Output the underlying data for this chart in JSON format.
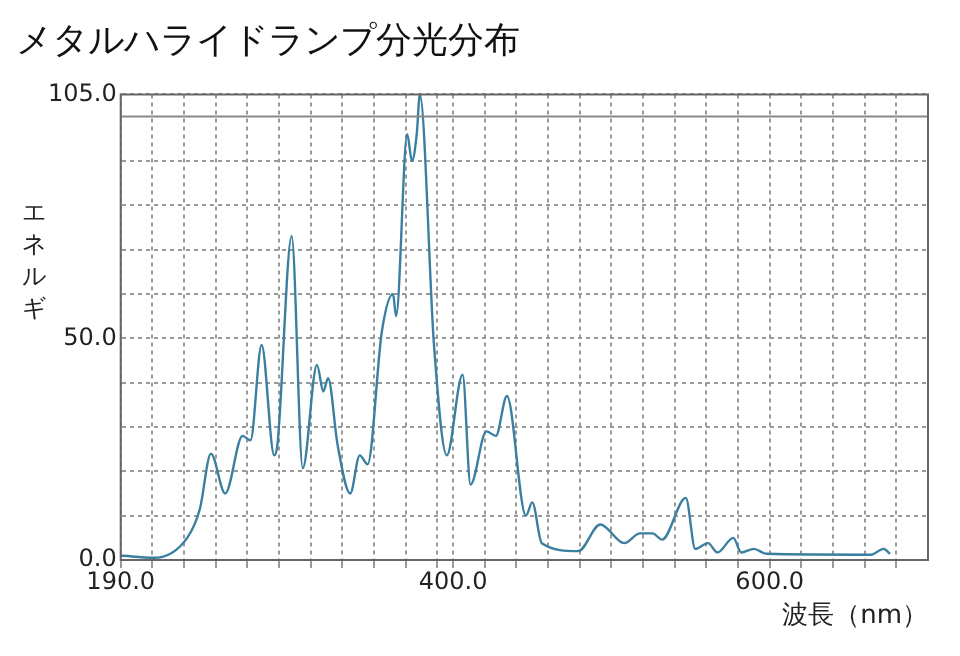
{
  "chart_data": {
    "type": "line",
    "title": "メタルハライドランプ分光分布",
    "xlabel": "波長（nm）",
    "ylabel": "エネルギ",
    "x": [
      190,
      211,
      232,
      240,
      247,
      256,
      267,
      272,
      279,
      287,
      289,
      298,
      305,
      314,
      318,
      321,
      327,
      335,
      341,
      346,
      355,
      362,
      364,
      371,
      374,
      377,
      379,
      388,
      396,
      406,
      411,
      421,
      427,
      434,
      446,
      450,
      456,
      479,
      493,
      508,
      518,
      526,
      532,
      547,
      553,
      561,
      567,
      577,
      582,
      590,
      598,
      664,
      672,
      676
    ],
    "series": [
      {
        "color": "#3a7fa0",
        "values": [
          1,
          0.5,
          5,
          11.5,
          24,
          15,
          28,
          27,
          48.5,
          23.6,
          26,
          73,
          20.7,
          44,
          38,
          41,
          26,
          15,
          23.6,
          21.6,
          51.6,
          60,
          55,
          96,
          90,
          96,
          105,
          48,
          23.6,
          41.8,
          17,
          29,
          28,
          37,
          10,
          13,
          3.8,
          2,
          8,
          3.8,
          6,
          6,
          4.6,
          14,
          2.5,
          3.8,
          1.7,
          5,
          1.7,
          2.5,
          1.4,
          1.2,
          2.5,
          1.4
        ]
      }
    ],
    "xlim": [
      190,
      700
    ],
    "xticks": [
      {
        "value": 190,
        "label": "190.0"
      },
      {
        "value": 210,
        "label": null
      },
      {
        "value": 230,
        "label": null
      },
      {
        "value": 250,
        "label": null
      },
      {
        "value": 270,
        "label": null
      },
      {
        "value": 290,
        "label": null
      },
      {
        "value": 310,
        "label": null
      },
      {
        "value": 330,
        "label": null
      },
      {
        "value": 350,
        "label": null
      },
      {
        "value": 370,
        "label": null
      },
      {
        "value": 390,
        "label": null
      },
      {
        "value": 400,
        "label": "400.0"
      },
      {
        "value": 420,
        "label": null
      },
      {
        "value": 440,
        "label": null
      },
      {
        "value": 460,
        "label": null
      },
      {
        "value": 480,
        "label": null
      },
      {
        "value": 500,
        "label": null
      },
      {
        "value": 520,
        "label": null
      },
      {
        "value": 540,
        "label": null
      },
      {
        "value": 560,
        "label": null
      },
      {
        "value": 580,
        "label": null
      },
      {
        "value": 600,
        "label": "600.0"
      },
      {
        "value": 620,
        "label": null
      },
      {
        "value": 640,
        "label": null
      },
      {
        "value": 660,
        "label": null
      },
      {
        "value": 680,
        "label": null
      }
    ],
    "ylim": [
      0,
      105
    ],
    "yticks": [
      {
        "value": 0,
        "label": "0.0"
      },
      {
        "value": 10,
        "label": null
      },
      {
        "value": 20,
        "label": null
      },
      {
        "value": 30,
        "label": null
      },
      {
        "value": 40,
        "label": null
      },
      {
        "value": 50,
        "label": "50.0"
      },
      {
        "value": 60,
        "label": null
      },
      {
        "value": 70,
        "label": null
      },
      {
        "value": 80,
        "label": null
      },
      {
        "value": 90,
        "label": null
      },
      {
        "value": 105,
        "label": "105.0"
      }
    ],
    "ref_lines": [
      {
        "axis": "y",
        "value": 100,
        "color": "#888888"
      }
    ],
    "grid": true,
    "legend": false,
    "marker": "none",
    "line_style": "solid"
  }
}
